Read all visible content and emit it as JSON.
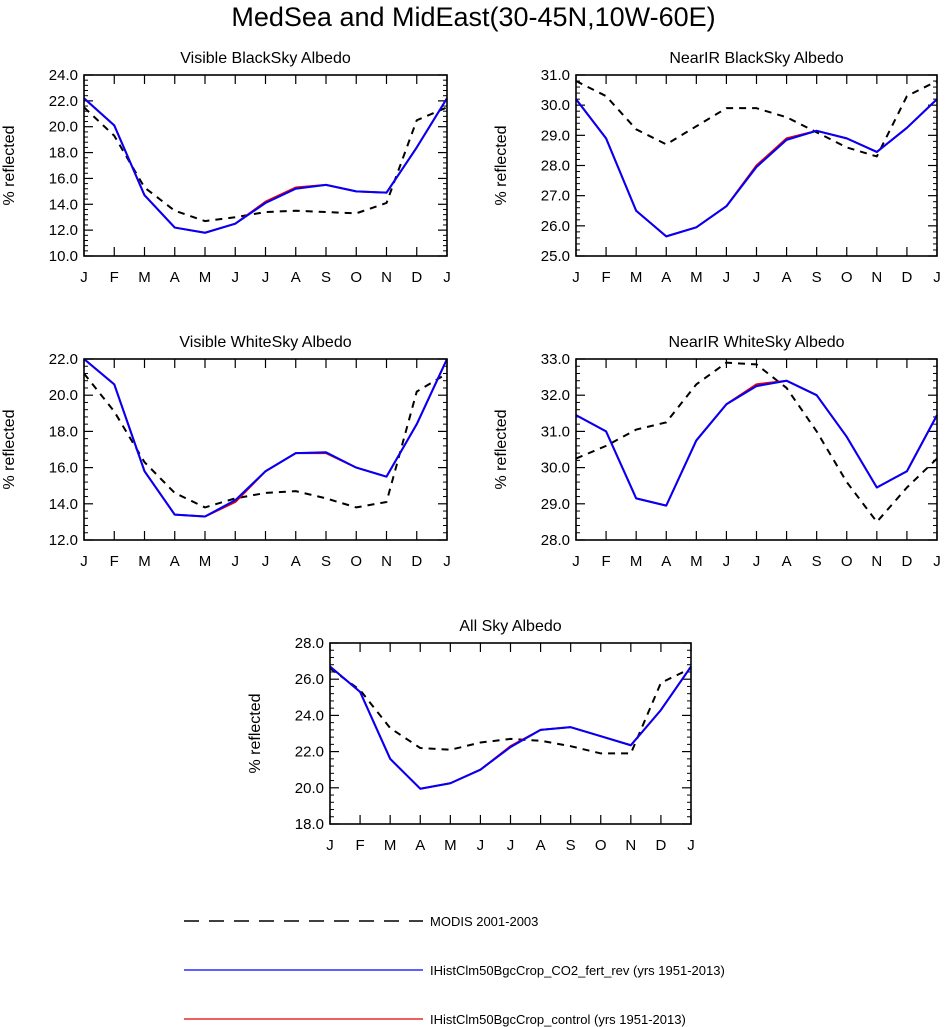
{
  "title": "MedSea and MidEast(30-45N,10W-60E)",
  "months": [
    "J",
    "F",
    "M",
    "A",
    "M",
    "J",
    "J",
    "A",
    "S",
    "O",
    "N",
    "D",
    "J"
  ],
  "legend": [
    {
      "key": "modis",
      "label": "MODIS 2001-2003",
      "color": "#000000",
      "dash": true
    },
    {
      "key": "co2",
      "label": "IHistClm50BgcCrop_CO2_fert_rev (yrs 1951-2013)",
      "color": "#0000ff",
      "dash": false
    },
    {
      "key": "control",
      "label": "IHistClm50BgcCrop_control (yrs 1951-2013)",
      "color": "#e00000",
      "dash": false
    }
  ],
  "chart_data": [
    {
      "type": "line",
      "title": "Visible BlackSky Albedo",
      "ylabel": "% reflected",
      "ylim": [
        10,
        24
      ],
      "yticks": [
        10,
        12,
        14,
        16,
        18,
        20,
        22,
        24
      ],
      "series": [
        {
          "name": "MODIS 2001-2003",
          "values": [
            21.5,
            19.3,
            15.3,
            13.5,
            12.7,
            13.0,
            13.4,
            13.5,
            13.4,
            13.3,
            14.1,
            20.5,
            21.5
          ]
        },
        {
          "name": "IHistClm50BgcCrop_control (yrs 1951-2013)",
          "values": [
            22.2,
            20.1,
            14.7,
            12.2,
            11.8,
            12.5,
            14.2,
            15.3,
            15.5,
            15.0,
            14.9,
            18.4,
            22.2
          ]
        },
        {
          "name": "IHistClm50BgcCrop_CO2_fert_rev (yrs 1951-2013)",
          "values": [
            22.2,
            20.1,
            14.7,
            12.2,
            11.8,
            12.5,
            14.1,
            15.2,
            15.5,
            15.0,
            14.9,
            18.4,
            22.2
          ]
        }
      ]
    },
    {
      "type": "line",
      "title": "NearIR BlackSky Albedo",
      "ylabel": "% reflected",
      "ylim": [
        25,
        31
      ],
      "yticks": [
        25,
        26,
        27,
        28,
        29,
        30,
        31
      ],
      "series": [
        {
          "name": "MODIS 2001-2003",
          "values": [
            30.8,
            30.3,
            29.2,
            28.7,
            29.3,
            29.9,
            29.9,
            29.6,
            29.1,
            28.6,
            28.3,
            30.3,
            30.8
          ]
        },
        {
          "name": "IHistClm50BgcCrop_control (yrs 1951-2013)",
          "values": [
            30.2,
            28.9,
            26.5,
            25.65,
            25.95,
            26.65,
            28.0,
            28.9,
            29.15,
            28.9,
            28.45,
            29.25,
            30.2
          ]
        },
        {
          "name": "IHistClm50BgcCrop_CO2_fert_rev (yrs 1951-2013)",
          "values": [
            30.2,
            28.9,
            26.5,
            25.65,
            25.95,
            26.65,
            27.95,
            28.85,
            29.15,
            28.9,
            28.45,
            29.25,
            30.2
          ]
        }
      ]
    },
    {
      "type": "line",
      "title": "Visible WhiteSky Albedo",
      "ylabel": "% reflected",
      "ylim": [
        12,
        22
      ],
      "yticks": [
        12,
        14,
        16,
        18,
        20,
        22
      ],
      "series": [
        {
          "name": "MODIS 2001-2003",
          "values": [
            21.2,
            19.1,
            16.3,
            14.6,
            13.8,
            14.3,
            14.6,
            14.7,
            14.3,
            13.8,
            14.1,
            20.2,
            21.2
          ]
        },
        {
          "name": "IHistClm50BgcCrop_control (yrs 1951-2013)",
          "values": [
            22.0,
            20.6,
            15.8,
            13.4,
            13.3,
            14.1,
            15.8,
            16.8,
            16.8,
            16.0,
            15.5,
            18.4,
            22.0
          ]
        },
        {
          "name": "IHistClm50BgcCrop_CO2_fert_rev (yrs 1951-2013)",
          "values": [
            22.0,
            20.6,
            15.8,
            13.4,
            13.3,
            14.2,
            15.8,
            16.8,
            16.85,
            16.0,
            15.5,
            18.4,
            22.0
          ]
        }
      ]
    },
    {
      "type": "line",
      "title": "NearIR WhiteSky Albedo",
      "ylabel": "% reflected",
      "ylim": [
        28,
        33
      ],
      "yticks": [
        28,
        29,
        30,
        31,
        32,
        33
      ],
      "series": [
        {
          "name": "MODIS 2001-2003",
          "values": [
            30.25,
            30.6,
            31.05,
            31.25,
            32.3,
            32.9,
            32.85,
            32.2,
            31.0,
            29.6,
            28.5,
            29.45,
            30.25
          ]
        },
        {
          "name": "IHistClm50BgcCrop_control (yrs 1951-2013)",
          "values": [
            31.45,
            31.0,
            29.15,
            28.95,
            30.75,
            31.75,
            32.3,
            32.4,
            32.0,
            30.85,
            29.45,
            29.9,
            31.45
          ]
        },
        {
          "name": "IHistClm50BgcCrop_CO2_fert_rev (yrs 1951-2013)",
          "values": [
            31.45,
            31.0,
            29.15,
            28.95,
            30.75,
            31.75,
            32.25,
            32.4,
            32.0,
            30.85,
            29.45,
            29.9,
            31.45
          ]
        }
      ]
    },
    {
      "type": "line",
      "title": "All Sky Albedo",
      "ylabel": "% reflected",
      "ylim": [
        18,
        28
      ],
      "yticks": [
        18,
        20,
        22,
        24,
        26,
        28
      ],
      "series": [
        {
          "name": "MODIS 2001-2003",
          "values": [
            26.6,
            25.4,
            23.3,
            22.2,
            22.1,
            22.5,
            22.7,
            22.6,
            22.3,
            21.9,
            21.9,
            25.8,
            26.6
          ]
        },
        {
          "name": "IHistClm50BgcCrop_control (yrs 1951-2013)",
          "values": [
            26.7,
            25.3,
            21.6,
            19.95,
            20.25,
            21.0,
            22.3,
            23.2,
            23.35,
            22.85,
            22.35,
            24.3,
            26.7
          ]
        },
        {
          "name": "IHistClm50BgcCrop_CO2_fert_rev (yrs 1951-2013)",
          "values": [
            26.7,
            25.3,
            21.6,
            19.95,
            20.25,
            21.0,
            22.25,
            23.2,
            23.35,
            22.85,
            22.35,
            24.3,
            26.7
          ]
        }
      ]
    }
  ]
}
